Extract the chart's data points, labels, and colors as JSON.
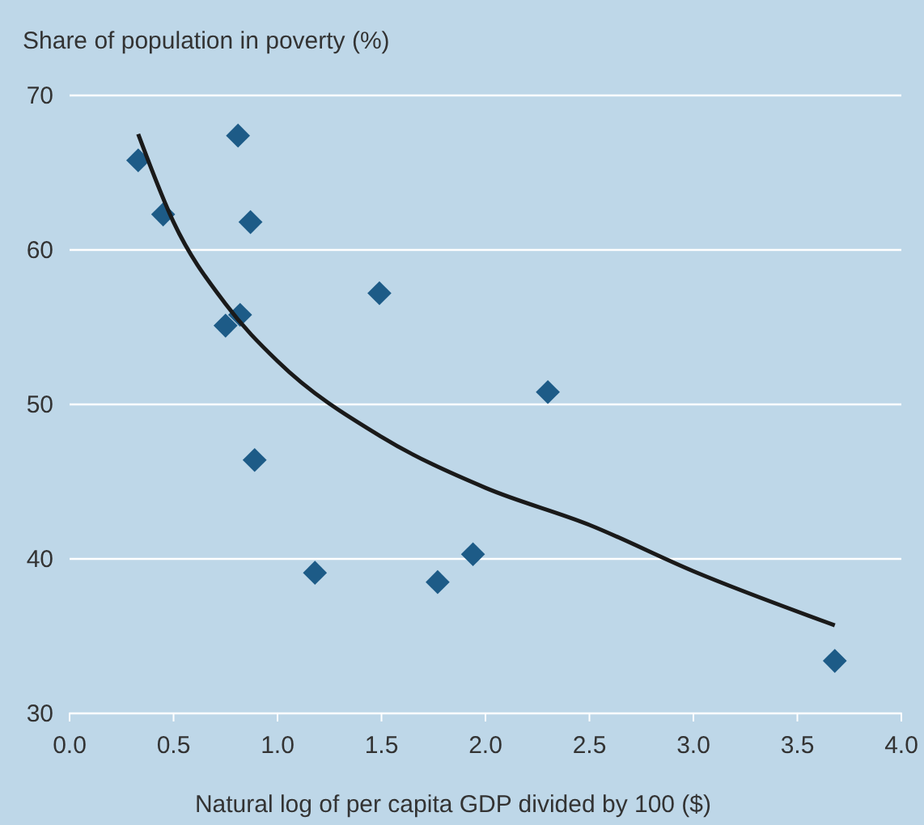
{
  "chart_data": {
    "type": "scatter",
    "ylabel": "Share of population in poverty (%)",
    "xlabel": "Natural log of per capita GDP divided by 100 ($)",
    "series": [
      {
        "color": "#1d5b87",
        "marker": "diamond",
        "x": [
          0.33,
          0.81,
          0.45,
          0.87,
          0.82,
          0.75,
          0.89,
          1.49,
          2.3,
          1.18,
          1.77,
          1.94,
          3.68
        ],
        "values": [
          65.8,
          67.4,
          62.3,
          61.8,
          55.8,
          55.1,
          46.4,
          57.2,
          50.8,
          39.1,
          38.5,
          40.3,
          33.4
        ]
      },
      {
        "type": "line",
        "color": "#1a1a1a",
        "line_style": "solid",
        "x": [
          0.33,
          0.5,
          0.75,
          1.0,
          1.5,
          2.0,
          2.5,
          3.0,
          3.68
        ],
        "values": [
          67.5,
          61.8,
          56.5,
          52.8,
          47.9,
          44.6,
          42.2,
          39.2,
          35.7
        ]
      }
    ],
    "xlim": [
      0,
      4
    ],
    "xticks": [
      {
        "value": 0,
        "label": "0.0"
      },
      {
        "value": 0.5,
        "label": "0.5"
      },
      {
        "value": 1,
        "label": "1.0"
      },
      {
        "value": 1.5,
        "label": "1.5"
      },
      {
        "value": 2,
        "label": "2.0"
      },
      {
        "value": 2.5,
        "label": "2.5"
      },
      {
        "value": 3,
        "label": "3.0"
      },
      {
        "value": 3.5,
        "label": "3.5"
      },
      {
        "value": 4,
        "label": "4.0"
      }
    ],
    "ylim": [
      30,
      70
    ],
    "yticks": [
      30,
      40,
      50,
      60,
      70
    ],
    "grid": "y"
  }
}
